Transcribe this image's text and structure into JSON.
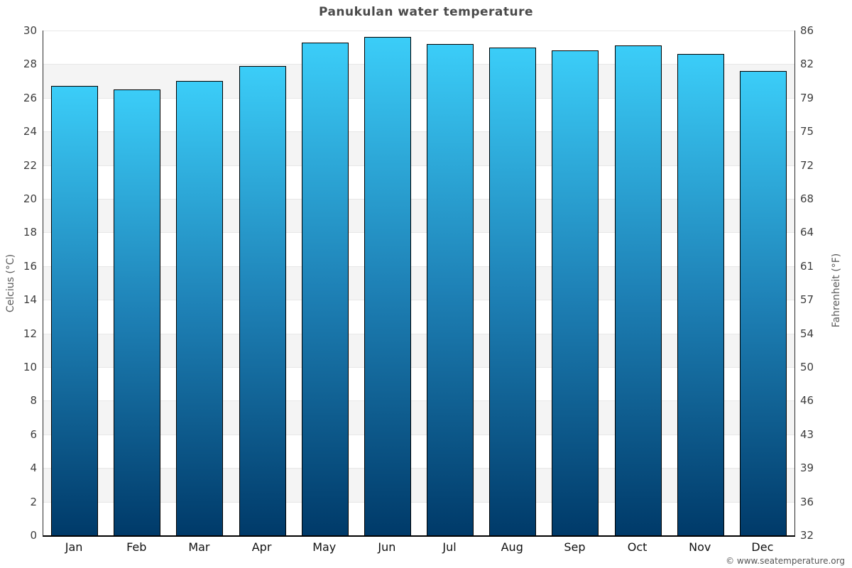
{
  "title": "Panukulan water temperature",
  "footer": "© www.seatemperature.org",
  "colors": {
    "bar_gradient_top": "#3bcdf8",
    "bar_gradient_mid": "#1e81b6",
    "bar_gradient_bottom": "#003a69",
    "bar_border": "#000000",
    "band_shade": "#f4f4f4",
    "gridline": "#e7e7e7",
    "title_text": "#4a4a4a",
    "tick_text": "#3d3d3d",
    "axis_title_text": "#5a5a5a",
    "footer_text": "#555555"
  },
  "chart_data": {
    "type": "bar",
    "title": "Panukulan water temperature",
    "categories": [
      "Jan",
      "Feb",
      "Mar",
      "Apr",
      "May",
      "Jun",
      "Jul",
      "Aug",
      "Sep",
      "Oct",
      "Nov",
      "Dec"
    ],
    "values": [
      26.7,
      26.5,
      27.0,
      27.9,
      29.3,
      29.6,
      29.2,
      29.0,
      28.8,
      29.1,
      28.6,
      27.6
    ],
    "units": "°C",
    "xlabel": "",
    "ylabel_left": "Celcius (°C)",
    "ylabel_right": "Fahrenheit (°F)",
    "ylim": [
      0,
      30
    ],
    "yticks_celsius": [
      30,
      28,
      26,
      24,
      22,
      20,
      18,
      16,
      14,
      12,
      10,
      8,
      6,
      4,
      2,
      0
    ],
    "yticks_fahrenheit": [
      86,
      82,
      79,
      75,
      72,
      68,
      64,
      61,
      57,
      54,
      50,
      46,
      43,
      39,
      36,
      32
    ],
    "grid": "horizontal gridlines at 2°C steps with alternating white/gray bands",
    "legend": "none"
  }
}
